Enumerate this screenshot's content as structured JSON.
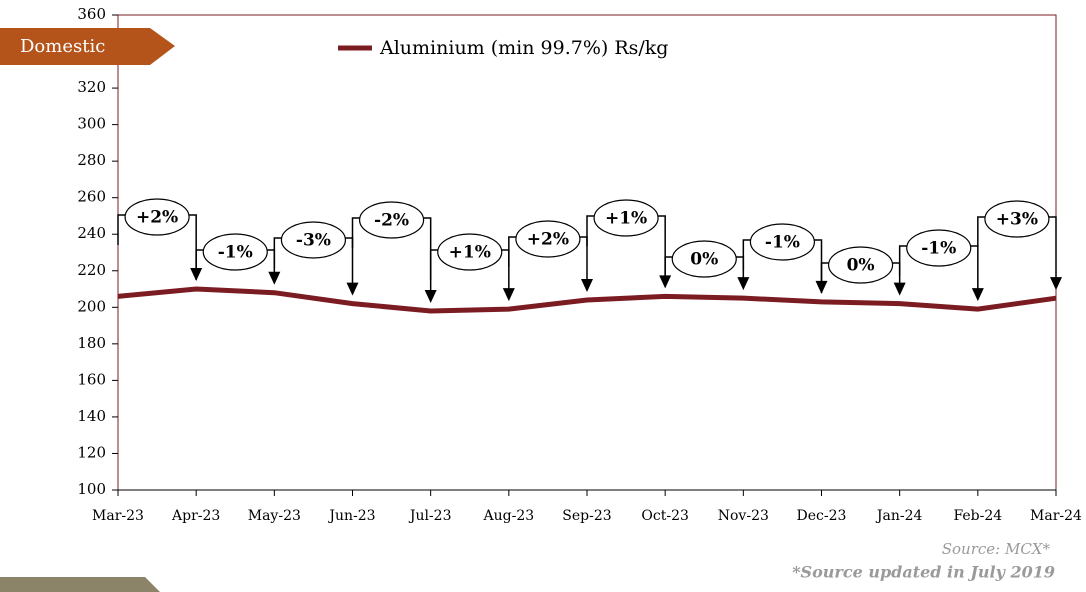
{
  "chart_data": {
    "type": "line",
    "banner": "Domestic",
    "categories": [
      "Mar-23",
      "Apr-23",
      "May-23",
      "Jun-23",
      "Jul-23",
      "Aug-23",
      "Sep-23",
      "Oct-23",
      "Nov-23",
      "Dec-23",
      "Jan-24",
      "Feb-24",
      "Mar-24"
    ],
    "series": [
      {
        "name": "Aluminium (min 99.7%) Rs/kg",
        "color": "#7b1c22",
        "values": [
          206,
          210,
          208,
          202,
          198,
          199,
          204,
          206,
          205,
          203,
          202,
          199,
          205
        ]
      }
    ],
    "annotations": [
      "+2%",
      "-1%",
      "-3%",
      "-2%",
      "+1%",
      "+2%",
      "+1%",
      "0%",
      "-1%",
      "0%",
      "-1%",
      "+3%"
    ],
    "ylim": [
      100,
      360
    ],
    "yticks": [
      100,
      120,
      140,
      160,
      180,
      200,
      220,
      240,
      260,
      280,
      300,
      320,
      340,
      360
    ],
    "source": "Source: MCX*",
    "source_note": "*Source updated in July 2019"
  }
}
